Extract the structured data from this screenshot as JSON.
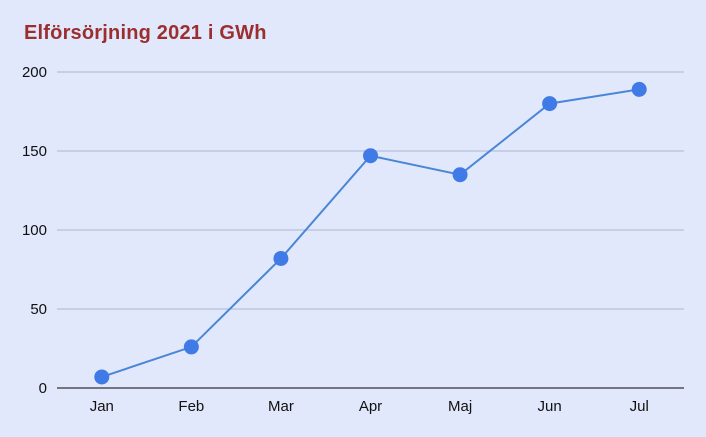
{
  "chart_data": {
    "type": "line",
    "title": "Elförsörjning 2021 i GWh",
    "xlabel": "",
    "ylabel": "",
    "categories": [
      "Jan",
      "Feb",
      "Mar",
      "Apr",
      "Maj",
      "Jun",
      "Jul"
    ],
    "series": [
      {
        "values": [
          7,
          26,
          82,
          147,
          135,
          180,
          189
        ]
      }
    ],
    "ylim": [
      0,
      200
    ],
    "yticks": [
      0,
      50,
      100,
      150,
      200
    ],
    "grid": true,
    "legend": "none",
    "colors": {
      "line": "#4a86d8",
      "marker": "#3f7ae6",
      "title": "#9b2f2f",
      "grid": "#a9b6d6",
      "background": "#e1e8fb"
    }
  }
}
